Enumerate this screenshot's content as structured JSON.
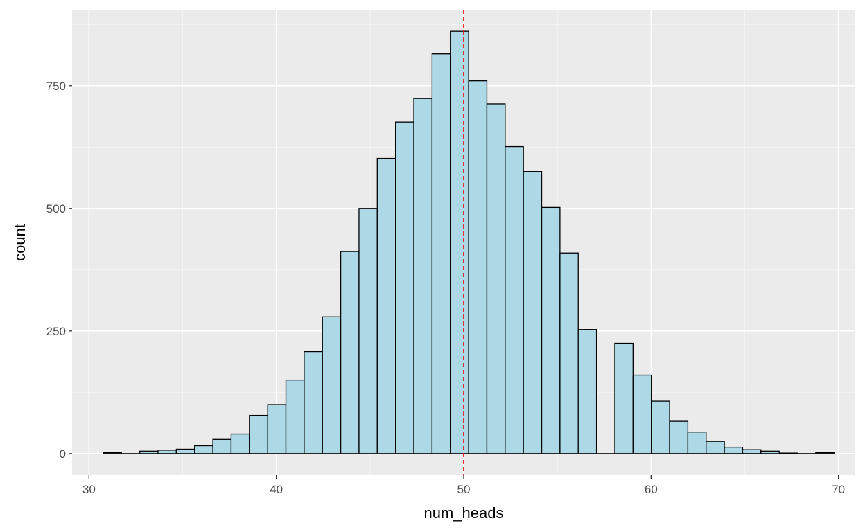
{
  "chart_data": {
    "type": "histogram",
    "title": "",
    "xlabel": "num_heads",
    "ylabel": "count",
    "xlim": [
      29.1,
      70.9
    ],
    "ylim": [
      -44,
      905
    ],
    "x_ticks": [
      30,
      40,
      50,
      60,
      70
    ],
    "y_ticks": [
      0,
      250,
      500,
      750
    ],
    "x_minor_ticks": [
      35,
      45,
      55,
      65
    ],
    "y_minor_ticks": [
      125,
      375,
      625,
      875
    ],
    "bin_width": 0.975,
    "bins": [
      {
        "x": 31.25,
        "count": 2
      },
      {
        "x": 32.225,
        "count": 0
      },
      {
        "x": 33.2,
        "count": 5
      },
      {
        "x": 34.175,
        "count": 7
      },
      {
        "x": 35.15,
        "count": 9
      },
      {
        "x": 36.125,
        "count": 16
      },
      {
        "x": 37.1,
        "count": 29
      },
      {
        "x": 38.075,
        "count": 40
      },
      {
        "x": 39.05,
        "count": 78
      },
      {
        "x": 40.025,
        "count": 100
      },
      {
        "x": 41.0,
        "count": 150
      },
      {
        "x": 41.975,
        "count": 208
      },
      {
        "x": 42.95,
        "count": 279
      },
      {
        "x": 43.925,
        "count": 412
      },
      {
        "x": 44.9,
        "count": 500
      },
      {
        "x": 45.875,
        "count": 602
      },
      {
        "x": 46.85,
        "count": 676
      },
      {
        "x": 47.825,
        "count": 724
      },
      {
        "x": 48.8,
        "count": 815
      },
      {
        "x": 49.775,
        "count": 861
      },
      {
        "x": 50.75,
        "count": 760
      },
      {
        "x": 51.725,
        "count": 713
      },
      {
        "x": 52.7,
        "count": 626
      },
      {
        "x": 53.675,
        "count": 575
      },
      {
        "x": 54.65,
        "count": 502
      },
      {
        "x": 55.625,
        "count": 409
      },
      {
        "x": 56.6,
        "count": 253
      },
      {
        "x": 57.575,
        "count": 0
      },
      {
        "x": 58.55,
        "count": 225
      },
      {
        "x": 59.525,
        "count": 160
      },
      {
        "x": 60.5,
        "count": 107
      },
      {
        "x": 61.475,
        "count": 66
      },
      {
        "x": 62.45,
        "count": 44
      },
      {
        "x": 63.425,
        "count": 25
      },
      {
        "x": 64.4,
        "count": 13
      },
      {
        "x": 65.375,
        "count": 8
      },
      {
        "x": 66.35,
        "count": 5
      },
      {
        "x": 67.325,
        "count": 1
      },
      {
        "x": 68.3,
        "count": 0
      },
      {
        "x": 69.275,
        "count": 2
      }
    ],
    "reference_line": {
      "x": 50,
      "style": "dashed"
    },
    "colors": {
      "panel_background": "#EBEBEB",
      "grid_major": "#FFFFFF",
      "grid_minor": "#F5F5F5",
      "bar_fill": "#ADD8E6",
      "bar_outline": "#000000",
      "reference_line": "#FF0000",
      "tick_mark": "#333333"
    },
    "grid": true,
    "legend": "none"
  }
}
